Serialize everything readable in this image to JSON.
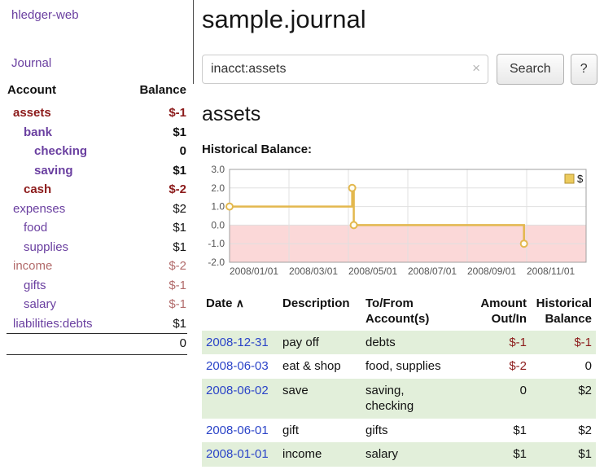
{
  "app": {
    "brand": "hledger-web",
    "nav_journal": "Journal"
  },
  "sidebar": {
    "col_account": "Account",
    "col_balance": "Balance",
    "accounts": [
      {
        "name": "assets",
        "balance": "$-1",
        "indent": 0,
        "bold": true,
        "name_color": "neg",
        "bal_color": "neg"
      },
      {
        "name": "bank",
        "balance": "$1",
        "indent": 1,
        "bold": true,
        "name_color": "purple",
        "bal_color": "plain"
      },
      {
        "name": "checking",
        "balance": "0",
        "indent": 2,
        "bold": true,
        "name_color": "purple",
        "bal_color": "plain"
      },
      {
        "name": "saving",
        "balance": "$1",
        "indent": 2,
        "bold": true,
        "name_color": "purple",
        "bal_color": "plain"
      },
      {
        "name": "cash",
        "balance": "$-2",
        "indent": 1,
        "bold": true,
        "name_color": "neg",
        "bal_color": "neg"
      },
      {
        "name": "expenses",
        "balance": "$2",
        "indent": 0,
        "bold": false,
        "name_color": "purple",
        "bal_color": "plain"
      },
      {
        "name": "food",
        "balance": "$1",
        "indent": 1,
        "bold": false,
        "name_color": "purple",
        "bal_color": "plain"
      },
      {
        "name": "supplies",
        "balance": "$1",
        "indent": 1,
        "bold": false,
        "name_color": "purple",
        "bal_color": "plain"
      },
      {
        "name": "income",
        "balance": "$-2",
        "indent": 0,
        "bold": false,
        "name_color": "rose",
        "bal_color": "rose"
      },
      {
        "name": "gifts",
        "balance": "$-1",
        "indent": 1,
        "bold": false,
        "name_color": "purple",
        "bal_color": "rose"
      },
      {
        "name": "salary",
        "balance": "$-1",
        "indent": 1,
        "bold": false,
        "name_color": "purple",
        "bal_color": "rose"
      },
      {
        "name": "liabilities:debts",
        "balance": "$1",
        "indent": 0,
        "bold": false,
        "name_color": "purple",
        "bal_color": "plain"
      }
    ],
    "total": "0"
  },
  "main": {
    "title": "sample.journal",
    "search": {
      "value": "inacct:assets",
      "clear_icon": "×",
      "button": "Search",
      "help": "?"
    },
    "account_heading": "assets",
    "chart_title": "Historical Balance:"
  },
  "chart_data": {
    "type": "line",
    "step": true,
    "title": "Historical Balance",
    "legend": [
      "$"
    ],
    "legend_position": "top-right",
    "x": [
      "2008-01-01",
      "2008-06-01",
      "2008-06-03",
      "2008-12-31"
    ],
    "series": [
      {
        "name": "$",
        "values": [
          1,
          2,
          0,
          -1
        ]
      }
    ],
    "ylim": [
      -2,
      3
    ],
    "yticks": [
      "3.0",
      "2.0",
      "1.0",
      "0.0",
      "-1.0",
      "-2.0"
    ],
    "xticks": [
      "2008/01/01",
      "2008/03/01",
      "2008/05/01",
      "2008/07/01",
      "2008/09/01",
      "2008/11/01"
    ],
    "x_domain_days": 442,
    "grid": true,
    "colors": {
      "line": "#e3b84e",
      "marker_fill": "#fffdf2",
      "legend_fill": "#eccb5e",
      "legend_stroke": "#b3922f",
      "negative_region": "#fbd8d8",
      "grid": "#e0e0e0",
      "border": "#a0a0a0",
      "axis_text": "#555555"
    }
  },
  "table": {
    "headers": {
      "date": "Date",
      "sort_icon": "∧",
      "description": "Description",
      "accounts": "To/From Account(s)",
      "amount": "Amount Out/In",
      "balance": "Historical Balance"
    },
    "rows": [
      {
        "date": "2008-12-31",
        "description": "pay off",
        "accounts": [
          "debts"
        ],
        "amount": "$-1",
        "amount_color": "neg",
        "balance": "$-1",
        "balance_color": "neg",
        "shaded": true,
        "wrap_accounts": false
      },
      {
        "date": "2008-06-03",
        "description": "eat & shop",
        "accounts": [
          "food",
          "supplies"
        ],
        "amount": "$-2",
        "amount_color": "neg",
        "balance": "0",
        "balance_color": "plain",
        "shaded": false,
        "wrap_accounts": false
      },
      {
        "date": "2008-06-02",
        "description": "save",
        "accounts": [
          "saving",
          "checking"
        ],
        "amount": "0",
        "amount_color": "plain",
        "balance": "$2",
        "balance_color": "plain",
        "shaded": true,
        "wrap_accounts": true
      },
      {
        "date": "2008-06-01",
        "description": "gift",
        "accounts": [
          "gifts"
        ],
        "amount": "$1",
        "amount_color": "plain",
        "balance": "$2",
        "balance_color": "plain",
        "shaded": false,
        "wrap_accounts": false
      },
      {
        "date": "2008-01-01",
        "description": "income",
        "accounts": [
          "salary"
        ],
        "amount": "$1",
        "amount_color": "plain",
        "balance": "$1",
        "balance_color": "plain",
        "shaded": true,
        "wrap_accounts": false
      }
    ]
  },
  "colors": {
    "accent_purple": "#6a3fa0",
    "negative_red": "#8c1b1b",
    "faded_rose": "#b26b6b",
    "link_blue": "#2b44c8",
    "row_shade_green": "#e2efda"
  }
}
